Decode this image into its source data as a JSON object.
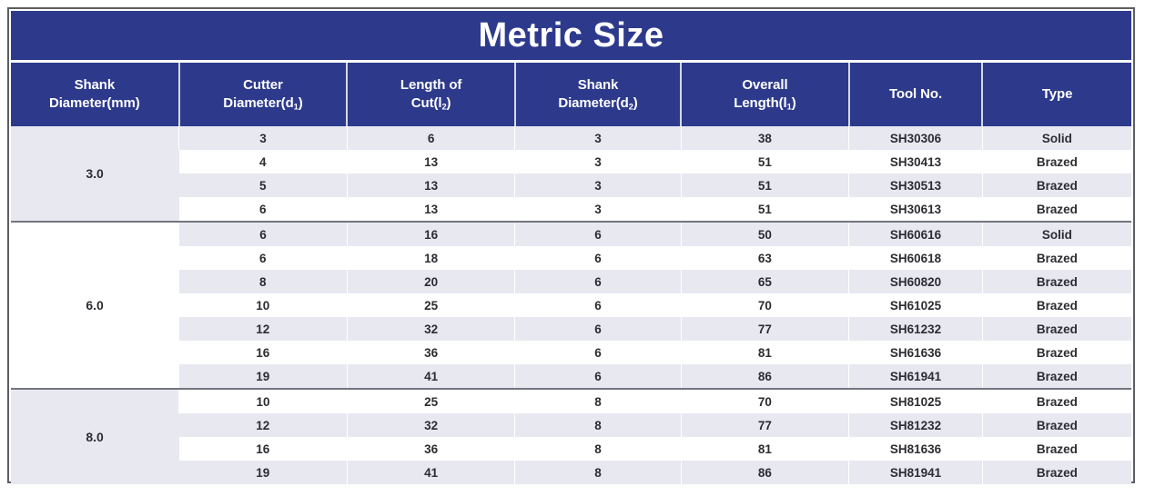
{
  "title": "Metric Size",
  "columns": [
    {
      "line1": "Shank",
      "line2_pre": "Diameter(mm)",
      "line2_sub": "",
      "line2_post": ""
    },
    {
      "line1": "Cutter",
      "line2_pre": "Diameter(d",
      "line2_sub": "1",
      "line2_post": ")"
    },
    {
      "line1": "Length of",
      "line2_pre": "Cut(l",
      "line2_sub": "2",
      "line2_post": ")"
    },
    {
      "line1": "Shank",
      "line2_pre": "Diameter(d",
      "line2_sub": "2",
      "line2_post": ")"
    },
    {
      "line1": "Overall",
      "line2_pre": "Length(l",
      "line2_sub": "1",
      "line2_post": ")"
    },
    {
      "line1": "Tool No.",
      "line2_pre": "",
      "line2_sub": "",
      "line2_post": ""
    },
    {
      "line1": "Type",
      "line2_pre": "",
      "line2_sub": "",
      "line2_post": ""
    }
  ],
  "groups": [
    {
      "shank": "3.0",
      "rows": [
        [
          "3",
          "6",
          "3",
          "38",
          "SH30306",
          "Solid"
        ],
        [
          "4",
          "13",
          "3",
          "51",
          "SH30413",
          "Brazed"
        ],
        [
          "5",
          "13",
          "3",
          "51",
          "SH30513",
          "Brazed"
        ],
        [
          "6",
          "13",
          "3",
          "51",
          "SH30613",
          "Brazed"
        ]
      ]
    },
    {
      "shank": "6.0",
      "rows": [
        [
          "6",
          "16",
          "6",
          "50",
          "SH60616",
          "Solid"
        ],
        [
          "6",
          "18",
          "6",
          "63",
          "SH60618",
          "Brazed"
        ],
        [
          "8",
          "20",
          "6",
          "65",
          "SH60820",
          "Brazed"
        ],
        [
          "10",
          "25",
          "6",
          "70",
          "SH61025",
          "Brazed"
        ],
        [
          "12",
          "32",
          "6",
          "77",
          "SH61232",
          "Brazed"
        ],
        [
          "16",
          "36",
          "6",
          "81",
          "SH61636",
          "Brazed"
        ],
        [
          "19",
          "41",
          "6",
          "86",
          "SH61941",
          "Brazed"
        ]
      ]
    },
    {
      "shank": "8.0",
      "rows": [
        [
          "10",
          "25",
          "8",
          "70",
          "SH81025",
          "Brazed"
        ],
        [
          "12",
          "32",
          "8",
          "77",
          "SH81232",
          "Brazed"
        ],
        [
          "16",
          "36",
          "8",
          "81",
          "SH81636",
          "Brazed"
        ],
        [
          "19",
          "41",
          "8",
          "86",
          "SH81941",
          "Brazed"
        ]
      ]
    }
  ],
  "colors": {
    "header_blue": "#2d3a8c",
    "row_alt": "#e8e8f1",
    "row_base": "#ffffff",
    "section_separator": "#73747e",
    "frame_border": "#5d5e63",
    "header_text": "#ffffff",
    "data_text": "#2c2c31"
  }
}
